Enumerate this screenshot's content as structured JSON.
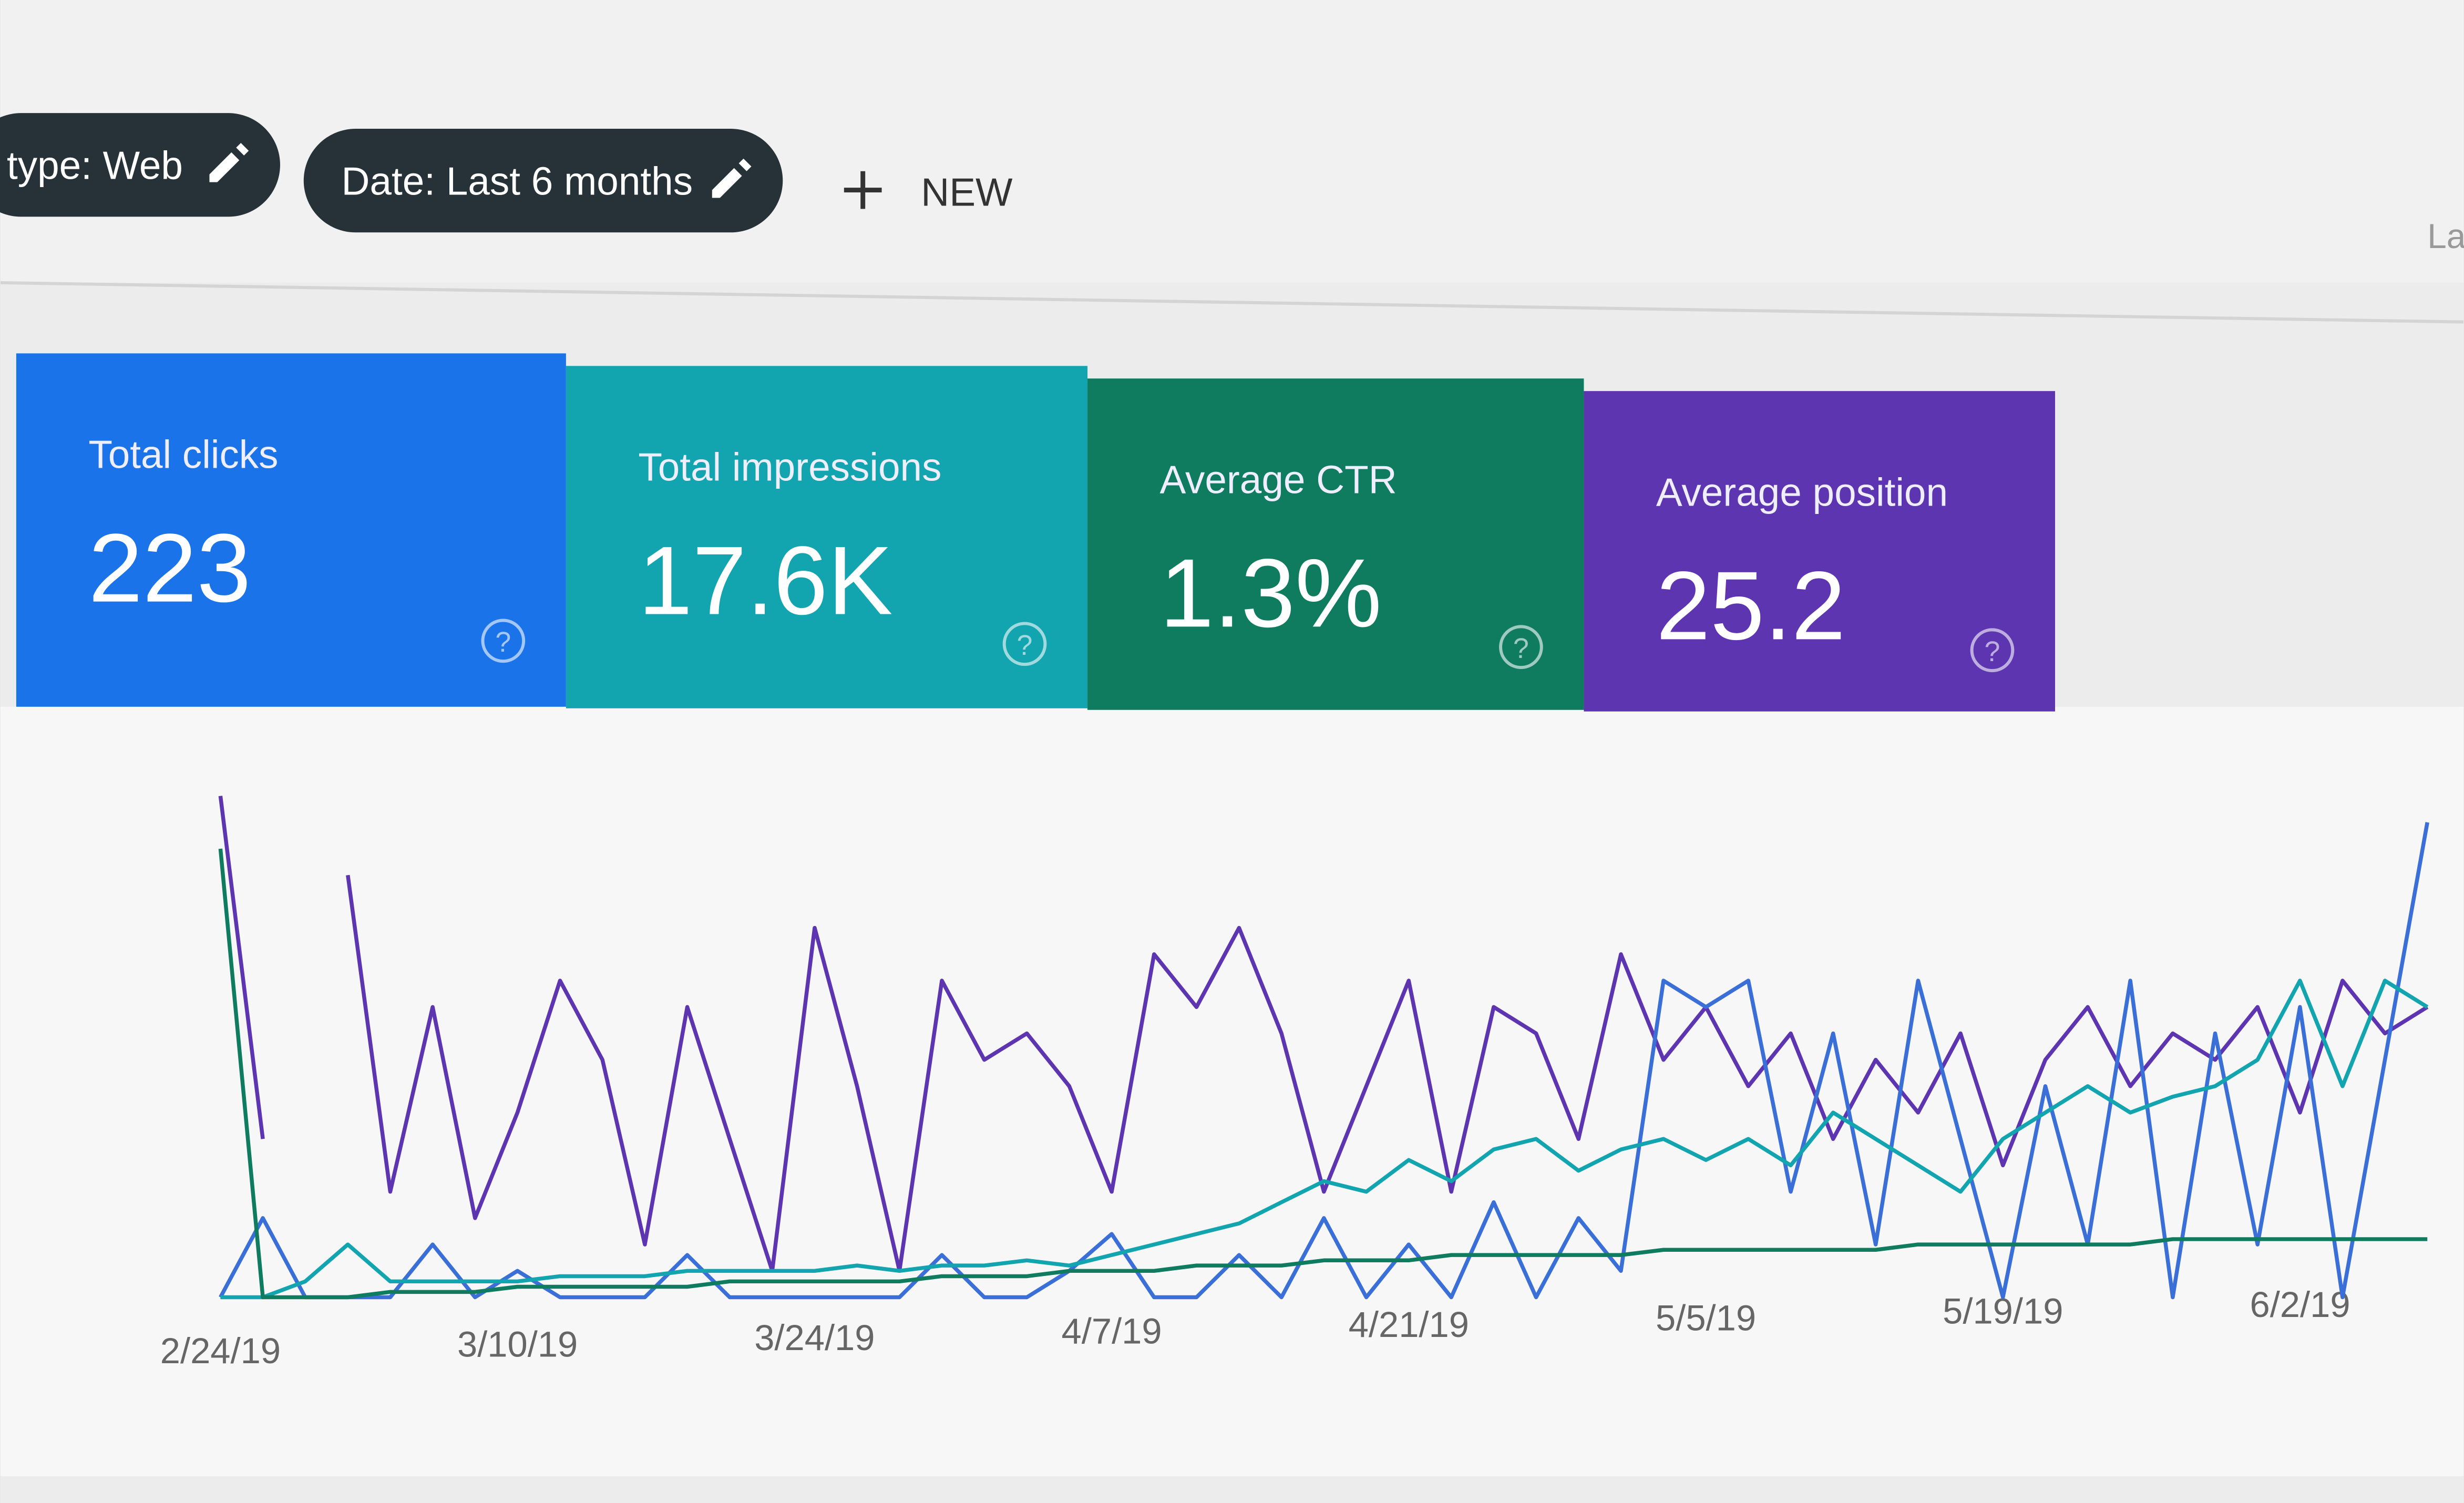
{
  "filters": [
    {
      "label": "type: Web"
    },
    {
      "label": "Date: Last 6 months"
    }
  ],
  "new_button": {
    "label": "NEW"
  },
  "header": {
    "cut_text": "La"
  },
  "help_label": "?",
  "cards": [
    {
      "title": "Total clicks",
      "value": "223",
      "color": "#1a73e8"
    },
    {
      "title": "Total impressions",
      "value": "17.6K",
      "color": "#12a4af"
    },
    {
      "title": "Average CTR",
      "value": "1.3%",
      "color": "#0f7b5f"
    },
    {
      "title": "Average position",
      "value": "25.2",
      "color": "#5e35b1"
    }
  ],
  "chart_data": {
    "type": "line",
    "ylim": [
      0,
      100
    ],
    "categories": [
      "2/24/19",
      null,
      null,
      null,
      null,
      null,
      null,
      "3/10/19",
      null,
      null,
      null,
      null,
      null,
      null,
      "3/24/19",
      null,
      null,
      null,
      null,
      null,
      null,
      "4/7/19",
      null,
      null,
      null,
      null,
      null,
      null,
      "4/21/19",
      null,
      null,
      null,
      null,
      null,
      null,
      "5/5/19",
      null,
      null,
      null,
      null,
      null,
      null,
      "5/19/19",
      null,
      null,
      null,
      null,
      null,
      null,
      "6/2/19",
      null,
      null,
      null
    ],
    "series": [
      {
        "color": "#5e35b1",
        "values": [
          95,
          30,
          null,
          80,
          20,
          55,
          15,
          35,
          60,
          45,
          10,
          55,
          30,
          5,
          70,
          40,
          5,
          60,
          45,
          50,
          40,
          20,
          65,
          55,
          70,
          50,
          20,
          40,
          60,
          20,
          55,
          50,
          30,
          65,
          45,
          55,
          40,
          50,
          30,
          45,
          35,
          50,
          25,
          45,
          55,
          40,
          50,
          45,
          55,
          35,
          60,
          50,
          55
        ]
      },
      {
        "color": "#3b6fd8",
        "values": [
          0,
          15,
          0,
          0,
          0,
          10,
          0,
          5,
          0,
          0,
          0,
          8,
          0,
          0,
          0,
          0,
          0,
          8,
          0,
          0,
          5,
          12,
          0,
          0,
          8,
          0,
          15,
          0,
          10,
          0,
          18,
          0,
          15,
          5,
          60,
          55,
          60,
          20,
          50,
          10,
          60,
          30,
          0,
          40,
          10,
          60,
          0,
          50,
          10,
          55,
          0,
          45,
          90
        ]
      },
      {
        "color": "#12a4af",
        "values": [
          0,
          0,
          3,
          10,
          3,
          3,
          3,
          3,
          4,
          4,
          4,
          5,
          5,
          5,
          5,
          6,
          5,
          6,
          6,
          7,
          6,
          8,
          10,
          12,
          14,
          18,
          22,
          20,
          26,
          22,
          28,
          30,
          24,
          28,
          30,
          26,
          30,
          25,
          35,
          30,
          25,
          20,
          30,
          35,
          40,
          35,
          38,
          40,
          45,
          60,
          40,
          60,
          55
        ]
      },
      {
        "color": "#0f7b5f",
        "values": [
          85,
          0,
          0,
          0,
          1,
          1,
          1,
          2,
          2,
          2,
          2,
          2,
          3,
          3,
          3,
          3,
          3,
          4,
          4,
          4,
          5,
          5,
          5,
          6,
          6,
          6,
          7,
          7,
          7,
          8,
          8,
          8,
          8,
          8,
          9,
          9,
          9,
          9,
          9,
          9,
          10,
          10,
          10,
          10,
          10,
          10,
          11,
          11,
          11,
          11,
          11,
          11,
          11
        ]
      }
    ]
  }
}
